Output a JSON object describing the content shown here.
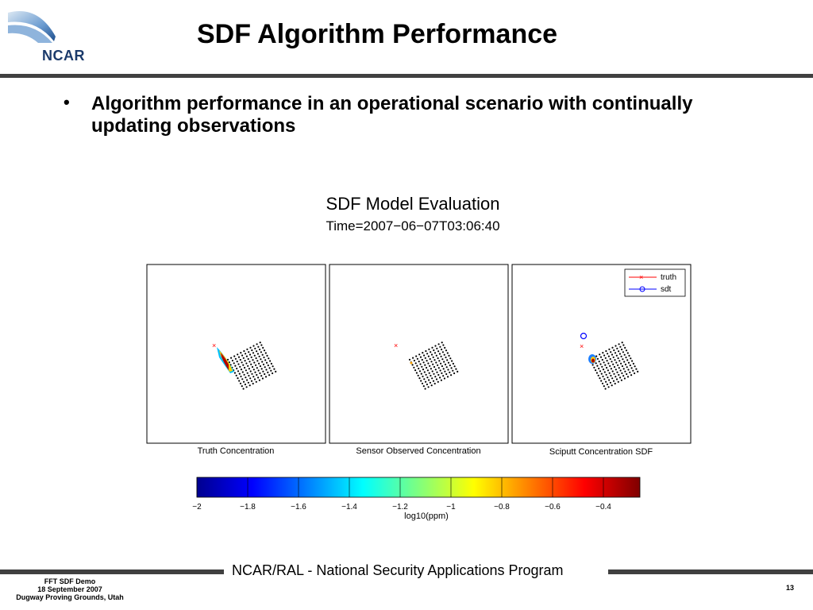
{
  "header": {
    "logo_text": "NCAR",
    "title": "SDF Algorithm Performance"
  },
  "bullet": {
    "marker": "•",
    "text": "Algorithm performance in an operational scenario with continually updating observations"
  },
  "figure": {
    "title": "SDF Model Evaluation",
    "time_label": "Time=2007−06−07T03:06:40",
    "panels": [
      {
        "caption": "Truth Concentration"
      },
      {
        "caption": "Sensor Observed Concentration"
      },
      {
        "caption": "Sciputt Concentration SDF"
      }
    ],
    "legend": [
      {
        "label": "truth",
        "marker": "x",
        "color": "#ff0000"
      },
      {
        "label": "sdt",
        "marker": "o",
        "color": "#0000ff"
      }
    ],
    "colorbar": {
      "ticks": [
        "−2",
        "−1.8",
        "−1.6",
        "−1.4",
        "−1.2",
        "−1",
        "−0.8",
        "−0.6",
        "−0.4"
      ],
      "label": "log10(ppm)",
      "colormap": "jet"
    }
  },
  "footer": {
    "program": "NCAR/RAL - National Security Applications Program",
    "lines": [
      "FFT SDF Demo",
      "18 September 2007",
      "Dugway Proving Grounds, Utah"
    ],
    "page_number": "13"
  }
}
